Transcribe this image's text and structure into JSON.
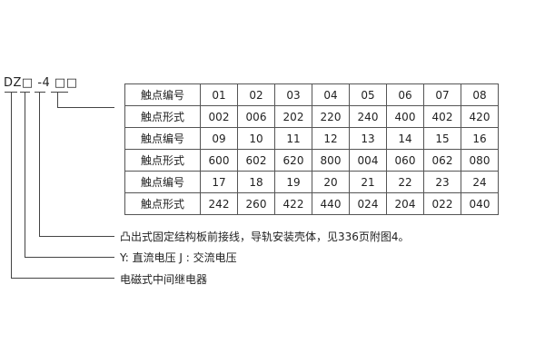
{
  "model_code": "DZ□ -4 □□",
  "table": {
    "rows": [
      {
        "label": "触点编号",
        "cells": [
          "01",
          "02",
          "03",
          "04",
          "05",
          "06",
          "07",
          "08"
        ]
      },
      {
        "label": "触点形式",
        "cells": [
          "002",
          "006",
          "202",
          "220",
          "240",
          "400",
          "402",
          "420"
        ]
      },
      {
        "label": "触点编号",
        "cells": [
          "09",
          "10",
          "11",
          "12",
          "13",
          "14",
          "15",
          "16"
        ]
      },
      {
        "label": "触点形式",
        "cells": [
          "600",
          "602",
          "620",
          "800",
          "004",
          "060",
          "062",
          "080"
        ]
      },
      {
        "label": "触点编号",
        "cells": [
          "17",
          "18",
          "19",
          "20",
          "21",
          "22",
          "23",
          "24"
        ]
      },
      {
        "label": "触点形式",
        "cells": [
          "242",
          "260",
          "422",
          "440",
          "024",
          "204",
          "022",
          "040"
        ]
      }
    ]
  },
  "notes": [
    "凸出式固定结构板前接线，导轨安装壳体，见336页附图4。",
    "Y: 直流电压   J : 交流电压",
    "电磁式中间继电器"
  ]
}
